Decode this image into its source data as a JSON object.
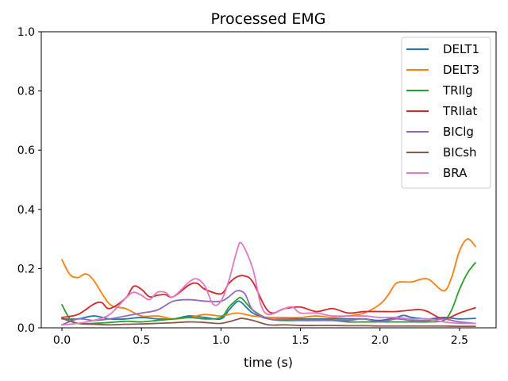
{
  "chart_data": {
    "type": "line",
    "title": "Processed EMG",
    "xlabel": "time (s)",
    "ylabel": "",
    "xlim": [
      -0.13,
      2.73
    ],
    "ylim": [
      0,
      1.0
    ],
    "xticks": [
      0.0,
      0.5,
      1.0,
      1.5,
      2.0,
      2.5
    ],
    "xtick_labels": [
      "0.0",
      "0.5",
      "1.0",
      "1.5",
      "2.0",
      "2.5"
    ],
    "yticks": [
      0.0,
      0.2,
      0.4,
      0.6,
      0.8,
      1.0
    ],
    "ytick_labels": [
      "0.0",
      "0.2",
      "0.4",
      "0.6",
      "0.8",
      "1.0"
    ],
    "grid": false,
    "legend_position": "top-right",
    "series": [
      {
        "name": "DELT1",
        "color": "#1f77b4",
        "x": [
          0.0,
          0.1,
          0.2,
          0.3,
          0.4,
          0.5,
          0.6,
          0.7,
          0.8,
          0.9,
          1.0,
          1.05,
          1.1,
          1.13,
          1.2,
          1.3,
          1.4,
          1.5,
          1.6,
          1.7,
          1.8,
          1.9,
          2.0,
          2.1,
          2.15,
          2.2,
          2.3,
          2.4,
          2.5,
          2.6
        ],
        "y": [
          0.03,
          0.03,
          0.04,
          0.03,
          0.03,
          0.035,
          0.03,
          0.03,
          0.04,
          0.035,
          0.03,
          0.06,
          0.088,
          0.085,
          0.05,
          0.03,
          0.03,
          0.03,
          0.03,
          0.03,
          0.03,
          0.03,
          0.025,
          0.035,
          0.042,
          0.035,
          0.03,
          0.035,
          0.03,
          0.032
        ]
      },
      {
        "name": "DELT3",
        "color": "#ff7f0e",
        "x": [
          0.0,
          0.05,
          0.1,
          0.15,
          0.2,
          0.3,
          0.4,
          0.5,
          0.6,
          0.7,
          0.8,
          0.9,
          1.0,
          1.1,
          1.2,
          1.3,
          1.4,
          1.5,
          1.6,
          1.7,
          1.8,
          1.9,
          2.0,
          2.05,
          2.1,
          2.15,
          2.2,
          2.3,
          2.4,
          2.45,
          2.5,
          2.55,
          2.6
        ],
        "y": [
          0.23,
          0.18,
          0.17,
          0.182,
          0.16,
          0.08,
          0.065,
          0.04,
          0.04,
          0.03,
          0.035,
          0.045,
          0.04,
          0.05,
          0.04,
          0.035,
          0.035,
          0.035,
          0.04,
          0.035,
          0.04,
          0.05,
          0.08,
          0.11,
          0.15,
          0.155,
          0.155,
          0.165,
          0.125,
          0.17,
          0.26,
          0.3,
          0.275
        ]
      },
      {
        "name": "TRIlg",
        "color": "#2ca02c",
        "x": [
          0.0,
          0.05,
          0.1,
          0.2,
          0.3,
          0.4,
          0.5,
          0.6,
          0.7,
          0.8,
          0.9,
          1.0,
          1.05,
          1.1,
          1.13,
          1.2,
          1.3,
          1.4,
          1.5,
          1.6,
          1.7,
          1.8,
          1.9,
          2.0,
          2.1,
          2.2,
          2.3,
          2.4,
          2.45,
          2.5,
          2.55,
          2.6
        ],
        "y": [
          0.078,
          0.03,
          0.015,
          0.015,
          0.018,
          0.022,
          0.02,
          0.025,
          0.03,
          0.035,
          0.03,
          0.035,
          0.07,
          0.095,
          0.1,
          0.06,
          0.03,
          0.025,
          0.025,
          0.025,
          0.025,
          0.02,
          0.02,
          0.02,
          0.02,
          0.02,
          0.02,
          0.025,
          0.06,
          0.13,
          0.185,
          0.22
        ]
      },
      {
        "name": "TRIlat",
        "color": "#d62728",
        "x": [
          0.0,
          0.1,
          0.2,
          0.25,
          0.3,
          0.4,
          0.45,
          0.5,
          0.55,
          0.6,
          0.65,
          0.7,
          0.8,
          0.85,
          0.9,
          1.0,
          1.05,
          1.1,
          1.15,
          1.2,
          1.3,
          1.4,
          1.5,
          1.6,
          1.7,
          1.8,
          1.9,
          2.0,
          2.1,
          2.2,
          2.25,
          2.3,
          2.4,
          2.5,
          2.6
        ],
        "y": [
          0.035,
          0.045,
          0.08,
          0.085,
          0.065,
          0.1,
          0.14,
          0.13,
          0.105,
          0.11,
          0.112,
          0.105,
          0.145,
          0.15,
          0.13,
          0.115,
          0.15,
          0.172,
          0.175,
          0.155,
          0.055,
          0.065,
          0.07,
          0.055,
          0.065,
          0.05,
          0.055,
          0.055,
          0.055,
          0.06,
          0.062,
          0.055,
          0.03,
          0.05,
          0.068
        ]
      },
      {
        "name": "BIClg",
        "color": "#9467bd",
        "x": [
          0.0,
          0.1,
          0.2,
          0.3,
          0.4,
          0.5,
          0.6,
          0.7,
          0.8,
          0.9,
          1.0,
          1.05,
          1.1,
          1.15,
          1.2,
          1.3,
          1.4,
          1.5,
          1.6,
          1.7,
          1.8,
          1.9,
          2.0,
          2.1,
          2.2,
          2.3,
          2.4,
          2.5,
          2.6
        ],
        "y": [
          0.01,
          0.03,
          0.025,
          0.03,
          0.04,
          0.05,
          0.06,
          0.09,
          0.095,
          0.09,
          0.09,
          0.105,
          0.125,
          0.115,
          0.06,
          0.03,
          0.03,
          0.025,
          0.025,
          0.025,
          0.025,
          0.03,
          0.02,
          0.03,
          0.025,
          0.025,
          0.03,
          0.02,
          0.015
        ]
      },
      {
        "name": "BICsh",
        "color": "#8c564b",
        "x": [
          0.0,
          0.1,
          0.2,
          0.3,
          0.4,
          0.5,
          0.6,
          0.7,
          0.8,
          0.9,
          1.0,
          1.1,
          1.13,
          1.2,
          1.3,
          1.4,
          1.5,
          1.6,
          1.7,
          1.8,
          1.9,
          2.0,
          2.1,
          2.2,
          2.3,
          2.4,
          2.5,
          2.6
        ],
        "y": [
          0.032,
          0.015,
          0.012,
          0.01,
          0.012,
          0.013,
          0.015,
          0.017,
          0.02,
          0.018,
          0.015,
          0.028,
          0.032,
          0.025,
          0.01,
          0.01,
          0.008,
          0.008,
          0.008,
          0.007,
          0.007,
          0.006,
          0.006,
          0.006,
          0.006,
          0.006,
          0.005,
          0.005
        ]
      },
      {
        "name": "BRA",
        "color": "#e377c2",
        "x": [
          0.0,
          0.1,
          0.2,
          0.3,
          0.4,
          0.45,
          0.5,
          0.55,
          0.6,
          0.65,
          0.7,
          0.8,
          0.85,
          0.9,
          0.95,
          1.0,
          1.05,
          1.1,
          1.13,
          1.2,
          1.25,
          1.3,
          1.4,
          1.45,
          1.5,
          1.6,
          1.7,
          1.8,
          1.9,
          2.0,
          2.1,
          2.2,
          2.3,
          2.4,
          2.5,
          2.6
        ],
        "y": [
          0.01,
          0.015,
          0.025,
          0.045,
          0.1,
          0.12,
          0.11,
          0.095,
          0.12,
          0.12,
          0.105,
          0.155,
          0.165,
          0.14,
          0.08,
          0.09,
          0.16,
          0.26,
          0.285,
          0.2,
          0.08,
          0.045,
          0.065,
          0.07,
          0.05,
          0.05,
          0.04,
          0.04,
          0.04,
          0.035,
          0.035,
          0.03,
          0.03,
          0.02,
          0.015,
          0.015
        ]
      }
    ]
  }
}
